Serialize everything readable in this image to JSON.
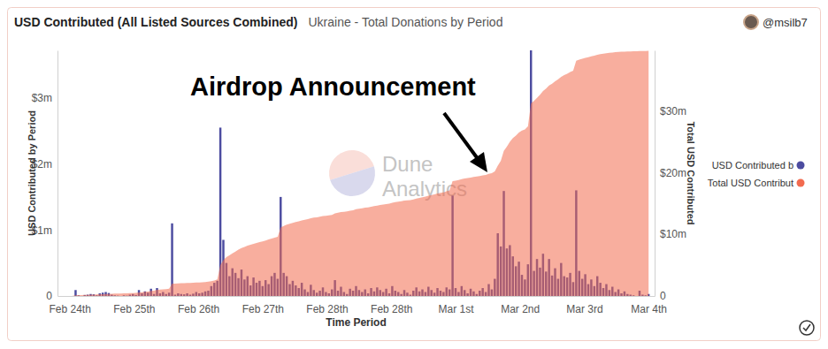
{
  "chart_data": {
    "type": "bar",
    "title": "USD Contributed (All Listed Sources Combined)",
    "subtitle": "Ukraine - Total Donations by Period",
    "author": "@msilb7",
    "annotation": "Airdrop Announcement",
    "watermark": [
      "Dune",
      "Analytics"
    ],
    "x_label": "Time Period",
    "y_label": "USD Contributed by Period",
    "y2_label": "Total USD Contributed",
    "legend": "right",
    "grid": false,
    "xlim": [
      8,
      206
    ],
    "xticks": [
      {
        "value": 12,
        "label": "Feb 24th"
      },
      {
        "value": 33.33,
        "label": "Feb 25th"
      },
      {
        "value": 54.67,
        "label": "Feb 26th"
      },
      {
        "value": 76,
        "label": "Feb 27th"
      },
      {
        "value": 97.33,
        "label": "Feb 28th"
      },
      {
        "value": 118.67,
        "label": "Feb 28th"
      },
      {
        "value": 140,
        "label": "Mar 1st"
      },
      {
        "value": 161.33,
        "label": "Mar 2nd"
      },
      {
        "value": 182.67,
        "label": "Mar 3rd"
      },
      {
        "value": 204,
        "label": "Mar 4th"
      }
    ],
    "ylim": [
      0,
      3720000
    ],
    "yticks": [
      0,
      {
        "value": 1000000,
        "label": "$1m"
      },
      {
        "value": 2000000,
        "label": "$2m"
      },
      {
        "value": 3000000,
        "label": "$3m"
      }
    ],
    "y2lim": [
      0,
      39800000
    ],
    "y2ticks": [
      0,
      {
        "value": 10000000,
        "label": "$10m"
      },
      {
        "value": 20000000,
        "label": "$20m"
      },
      {
        "value": 30000000,
        "label": "$30m"
      }
    ],
    "x": [
      13,
      14,
      15,
      16,
      17,
      18,
      19,
      20,
      21,
      22,
      23,
      24,
      25,
      26,
      27,
      28,
      29,
      30,
      31,
      32,
      33,
      34,
      35,
      36,
      37,
      38,
      39,
      40,
      41,
      42,
      43,
      44,
      45,
      46,
      47,
      48,
      49,
      50,
      51,
      52,
      53,
      54,
      55,
      56,
      57,
      58,
      59,
      60,
      61,
      62,
      63,
      64,
      65,
      66,
      67,
      68,
      69,
      70,
      71,
      72,
      73,
      74,
      75,
      76,
      77,
      78,
      79,
      80,
      81,
      82,
      83,
      84,
      85,
      86,
      87,
      88,
      89,
      90,
      91,
      92,
      93,
      94,
      95,
      96,
      97,
      98,
      99,
      100,
      101,
      102,
      103,
      104,
      105,
      106,
      107,
      108,
      109,
      110,
      111,
      112,
      113,
      114,
      115,
      116,
      117,
      118,
      119,
      120,
      121,
      122,
      123,
      124,
      125,
      126,
      127,
      128,
      129,
      130,
      131,
      132,
      133,
      134,
      135,
      136,
      137,
      138,
      139,
      140,
      141,
      142,
      143,
      144,
      145,
      146,
      147,
      148,
      149,
      150,
      151,
      152,
      153,
      154,
      155,
      156,
      157,
      158,
      159,
      160,
      161,
      162,
      163,
      164,
      165,
      166,
      167,
      168,
      169,
      170,
      171,
      172,
      173,
      174,
      175,
      176,
      177,
      178,
      179,
      180,
      181,
      182,
      183,
      184,
      185,
      186,
      187,
      188,
      189,
      190,
      191,
      192,
      193,
      194,
      195,
      196,
      197,
      198,
      199,
      200,
      201,
      202,
      203,
      204
    ],
    "series": [
      {
        "name": "USD Contributed b",
        "type": "bar",
        "color": "#4c4ca0",
        "values": [
          0,
          90000,
          10000,
          0,
          15000,
          20000,
          30000,
          25000,
          10000,
          40000,
          50000,
          60000,
          45000,
          20000,
          10000,
          5000,
          0,
          10000,
          5000,
          20000,
          30000,
          15000,
          90000,
          40000,
          70000,
          50000,
          110000,
          30000,
          120000,
          40000,
          60000,
          30000,
          50000,
          1100000,
          20000,
          40000,
          30000,
          25000,
          40000,
          20000,
          35000,
          60000,
          40000,
          50000,
          70000,
          80000,
          150000,
          200000,
          230000,
          2550000,
          850000,
          500000,
          300000,
          420000,
          350000,
          270000,
          400000,
          250000,
          300000,
          160000,
          280000,
          200000,
          230000,
          150000,
          240000,
          180000,
          300000,
          350000,
          260000,
          1500000,
          350000,
          300000,
          180000,
          230000,
          160000,
          120000,
          200000,
          100000,
          60000,
          170000,
          90000,
          50000,
          80000,
          130000,
          60000,
          40000,
          100000,
          240000,
          80000,
          140000,
          60000,
          30000,
          110000,
          80000,
          150000,
          90000,
          60000,
          100000,
          40000,
          120000,
          70000,
          130000,
          90000,
          60000,
          110000,
          40000,
          150000,
          80000,
          60000,
          30000,
          90000,
          50000,
          20000,
          80000,
          130000,
          70000,
          100000,
          60000,
          140000,
          90000,
          50000,
          120000,
          80000,
          60000,
          130000,
          100000,
          1520000,
          120000,
          60000,
          150000,
          90000,
          40000,
          110000,
          70000,
          30000,
          80000,
          120000,
          60000,
          180000,
          100000,
          260000,
          950000,
          750000,
          1590000,
          720000,
          770000,
          600000,
          450000,
          520000,
          320000,
          250000,
          480000,
          3720000,
          380000,
          560000,
          430000,
          640000,
          370000,
          560000,
          310000,
          420000,
          260000,
          500000,
          300000,
          280000,
          350000,
          210000,
          1600000,
          380000,
          260000,
          330000,
          180000,
          250000,
          150000,
          300000,
          200000,
          120000,
          180000,
          90000,
          140000,
          60000,
          100000,
          40000,
          70000,
          30000,
          20000,
          10000,
          0,
          80000,
          20000,
          10000,
          30000
        ]
      },
      {
        "name": "Total USD Contribut",
        "type": "area",
        "axis": "y2",
        "color": "#f26b4f",
        "values": [
          50000,
          120000,
          140000,
          150000,
          170000,
          190000,
          210000,
          230000,
          250000,
          270000,
          290000,
          310000,
          340000,
          360000,
          380000,
          390000,
          400000,
          420000,
          430000,
          450000,
          480000,
          500000,
          570000,
          610000,
          680000,
          730000,
          840000,
          870000,
          990000,
          1030000,
          1090000,
          1120000,
          1170000,
          2000000,
          2020000,
          2040000,
          2060000,
          2080000,
          2100000,
          2120000,
          2140000,
          2170000,
          2200000,
          2230000,
          2270000,
          2310000,
          2400000,
          2520000,
          2680000,
          5000000,
          5800000,
          6300000,
          6600000,
          6900000,
          7200000,
          7500000,
          7750000,
          7950000,
          8150000,
          8300000,
          8450000,
          8600000,
          8750000,
          8850000,
          9000000,
          9150000,
          9300000,
          9450000,
          9600000,
          11100000,
          11350000,
          11550000,
          11700000,
          11850000,
          12000000,
          12100000,
          12250000,
          12350000,
          12450000,
          12600000,
          12700000,
          12750000,
          12850000,
          12950000,
          13000000,
          13050000,
          13150000,
          13400000,
          13500000,
          13600000,
          13650000,
          13700000,
          13800000,
          13900000,
          14050000,
          14150000,
          14200000,
          14300000,
          14350000,
          14450000,
          14550000,
          14650000,
          14750000,
          14800000,
          14900000,
          14950000,
          15100000,
          15200000,
          15300000,
          15350000,
          15450000,
          15500000,
          15550000,
          15650000,
          15800000,
          15900000,
          16000000,
          16100000,
          16250000,
          16350000,
          16450000,
          16600000,
          16700000,
          16800000,
          16950000,
          17100000,
          18600000,
          18700000,
          18800000,
          18950000,
          19050000,
          19100000,
          19200000,
          19300000,
          19350000,
          19450000,
          19550000,
          19600000,
          19800000,
          19900000,
          20200000,
          21100000,
          21900000,
          23500000,
          24200000,
          25000000,
          25600000,
          26000000,
          26500000,
          26800000,
          27000000,
          27500000,
          31200000,
          31600000,
          32100000,
          32600000,
          33200000,
          33600000,
          34100000,
          34400000,
          34800000,
          35100000,
          35500000,
          35800000,
          36000000,
          36300000,
          36500000,
          38100000,
          38300000,
          38450000,
          38600000,
          38700000,
          38850000,
          38950000,
          39100000,
          39200000,
          39250000,
          39350000,
          39400000,
          39450000,
          39500000,
          39550000,
          39570000,
          39600000,
          39620000,
          39630000,
          39640000,
          39640000,
          39680000,
          39690000,
          39700000,
          39720000
        ]
      }
    ]
  }
}
